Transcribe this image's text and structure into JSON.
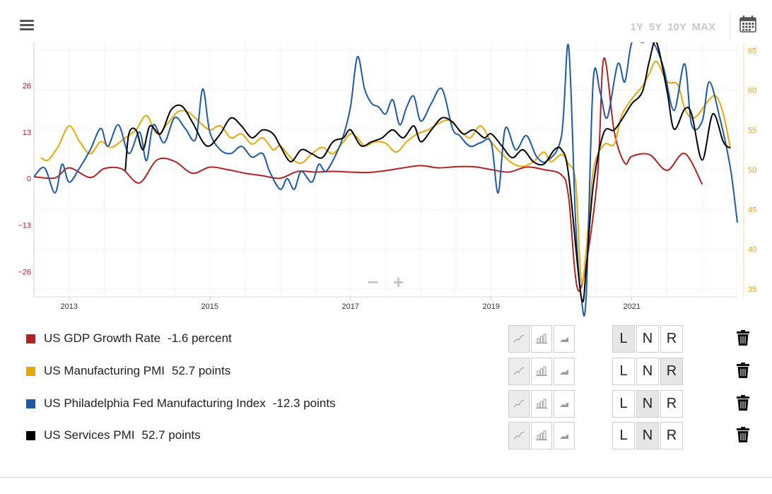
{
  "toolbar": {
    "menu_icon": "hamburger-menu-icon",
    "ranges": [
      "1Y",
      "5Y",
      "10Y",
      "MAX"
    ],
    "calendar_icon": "calendar-icon"
  },
  "chart_data": {
    "type": "line",
    "x_ticks": [
      "2013",
      "2015",
      "2017",
      "2019",
      "2021"
    ],
    "left_axis": {
      "ticks": [
        -26,
        -13,
        0,
        13,
        26
      ],
      "range": [
        -33,
        38
      ],
      "color": "#b22222"
    },
    "right_axis": {
      "ticks": [
        35,
        40,
        45,
        50,
        55,
        60,
        65
      ],
      "range": [
        34,
        66
      ],
      "color": "#e8a80c"
    },
    "x_range": [
      2012.5,
      2022.5
    ],
    "grid": true,
    "series": [
      {
        "name": "US GDP Growth Rate",
        "color": "#b22222",
        "axis": "left",
        "points": [
          [
            2012.5,
            0.5
          ],
          [
            2012.8,
            0.2
          ],
          [
            2013.0,
            3
          ],
          [
            2013.3,
            0.3
          ],
          [
            2013.5,
            2.8
          ],
          [
            2013.75,
            2.7
          ],
          [
            2014.0,
            -1.2
          ],
          [
            2014.25,
            5.2
          ],
          [
            2014.5,
            4.8
          ],
          [
            2014.75,
            1.5
          ],
          [
            2015.0,
            3.2
          ],
          [
            2015.25,
            2.5
          ],
          [
            2015.5,
            1.5
          ],
          [
            2015.75,
            0.8
          ],
          [
            2016.0,
            0.1
          ],
          [
            2016.25,
            2.0
          ],
          [
            2016.5,
            1.8
          ],
          [
            2016.75,
            2.0
          ],
          [
            2017.0,
            1.8
          ],
          [
            2017.25,
            1.7
          ],
          [
            2017.5,
            2.2
          ],
          [
            2017.75,
            3.0
          ],
          [
            2018.0,
            3.6
          ],
          [
            2018.25,
            3.0
          ],
          [
            2018.5,
            3.3
          ],
          [
            2018.75,
            3.3
          ],
          [
            2019.0,
            2.5
          ],
          [
            2019.25,
            1.8
          ],
          [
            2019.5,
            3.2
          ],
          [
            2019.75,
            2.5
          ],
          [
            2020.0,
            1.0
          ],
          [
            2020.1,
            -5
          ],
          [
            2020.25,
            -31.4
          ],
          [
            2020.5,
            -2
          ],
          [
            2020.6,
            33.4
          ],
          [
            2020.75,
            13
          ],
          [
            2020.9,
            4.3
          ],
          [
            2021.0,
            6.2
          ],
          [
            2021.25,
            6.7
          ],
          [
            2021.5,
            2.3
          ],
          [
            2021.75,
            7
          ],
          [
            2022.0,
            -1.6
          ]
        ]
      },
      {
        "name": "US Manufacturing PMI",
        "color": "#e8a80c",
        "axis": "right",
        "points": [
          [
            2012.6,
            51.5
          ],
          [
            2012.7,
            51.2
          ],
          [
            2012.85,
            53
          ],
          [
            2013.0,
            55.5
          ],
          [
            2013.15,
            53.5
          ],
          [
            2013.3,
            52.0
          ],
          [
            2013.45,
            53.5
          ],
          [
            2013.6,
            52.8
          ],
          [
            2013.8,
            54.0
          ],
          [
            2013.95,
            55.0
          ],
          [
            2014.1,
            56.8
          ],
          [
            2014.25,
            54.5
          ],
          [
            2014.4,
            55.8
          ],
          [
            2014.55,
            57.3
          ],
          [
            2014.7,
            57.2
          ],
          [
            2014.85,
            56.0
          ],
          [
            2015.0,
            55.0
          ],
          [
            2015.15,
            55.5
          ],
          [
            2015.3,
            54.0
          ],
          [
            2015.45,
            54.5
          ],
          [
            2015.6,
            53.2
          ],
          [
            2015.75,
            54.0
          ],
          [
            2015.9,
            52.5
          ],
          [
            2016.0,
            53.0
          ],
          [
            2016.15,
            51.5
          ],
          [
            2016.3,
            50.8
          ],
          [
            2016.45,
            52.0
          ],
          [
            2016.6,
            52.8
          ],
          [
            2016.75,
            52.0
          ],
          [
            2016.9,
            53.5
          ],
          [
            2017.0,
            54.5
          ],
          [
            2017.1,
            54.0
          ],
          [
            2017.2,
            53.0
          ],
          [
            2017.35,
            53.5
          ],
          [
            2017.5,
            53.3
          ],
          [
            2017.65,
            52.2
          ],
          [
            2017.8,
            53.5
          ],
          [
            2017.95,
            54.5
          ],
          [
            2018.1,
            55.0
          ],
          [
            2018.25,
            55.8
          ],
          [
            2018.4,
            56.2
          ],
          [
            2018.55,
            55.0
          ],
          [
            2018.7,
            54.0
          ],
          [
            2018.85,
            55.5
          ],
          [
            2019.0,
            53.5
          ],
          [
            2019.15,
            52.0
          ],
          [
            2019.3,
            50.8
          ],
          [
            2019.45,
            50.4
          ],
          [
            2019.6,
            51.0
          ],
          [
            2019.75,
            52.2
          ],
          [
            2019.85,
            51.0
          ],
          [
            2020.0,
            51.9
          ],
          [
            2020.1,
            50.7
          ],
          [
            2020.2,
            48.5
          ],
          [
            2020.28,
            36.1
          ],
          [
            2020.35,
            39.8
          ],
          [
            2020.45,
            49.8
          ],
          [
            2020.6,
            53.1
          ],
          [
            2020.75,
            53.2
          ],
          [
            2020.85,
            56.7
          ],
          [
            2021.0,
            58.9
          ],
          [
            2021.15,
            60.5
          ],
          [
            2021.25,
            62.1
          ],
          [
            2021.35,
            63.6
          ],
          [
            2021.5,
            61.1
          ],
          [
            2021.65,
            60.7
          ],
          [
            2021.75,
            57.7
          ],
          [
            2021.85,
            56.5
          ],
          [
            2021.95,
            57.0
          ],
          [
            2022.1,
            58.8
          ],
          [
            2022.2,
            59.2
          ],
          [
            2022.3,
            57.0
          ],
          [
            2022.4,
            52.7
          ]
        ]
      },
      {
        "name": "US Philadelphia Fed Manufacturing Index",
        "color": "#1c5aa8",
        "axis": "left",
        "points": [
          [
            2012.5,
            0.5
          ],
          [
            2012.65,
            3
          ],
          [
            2012.8,
            -4
          ],
          [
            2012.9,
            4
          ],
          [
            2013.0,
            -1
          ],
          [
            2013.15,
            3
          ],
          [
            2013.3,
            8
          ],
          [
            2013.45,
            14
          ],
          [
            2013.55,
            9
          ],
          [
            2013.7,
            15
          ],
          [
            2013.85,
            7
          ],
          [
            2014.0,
            13
          ],
          [
            2014.1,
            5
          ],
          [
            2014.2,
            15
          ],
          [
            2014.35,
            10
          ],
          [
            2014.5,
            17
          ],
          [
            2014.65,
            14
          ],
          [
            2014.8,
            11
          ],
          [
            2014.9,
            25
          ],
          [
            2015.0,
            13
          ],
          [
            2015.15,
            8
          ],
          [
            2015.3,
            7
          ],
          [
            2015.45,
            9
          ],
          [
            2015.6,
            6
          ],
          [
            2015.75,
            7
          ],
          [
            2015.85,
            2
          ],
          [
            2016.0,
            -3
          ],
          [
            2016.1,
            0
          ],
          [
            2016.2,
            -3
          ],
          [
            2016.3,
            2
          ],
          [
            2016.45,
            -1
          ],
          [
            2016.55,
            4
          ],
          [
            2016.65,
            2
          ],
          [
            2016.8,
            7
          ],
          [
            2016.9,
            12
          ],
          [
            2017.0,
            20
          ],
          [
            2017.1,
            34
          ],
          [
            2017.2,
            25
          ],
          [
            2017.3,
            21
          ],
          [
            2017.4,
            20
          ],
          [
            2017.5,
            18
          ],
          [
            2017.6,
            22
          ],
          [
            2017.7,
            15
          ],
          [
            2017.8,
            20
          ],
          [
            2017.9,
            23
          ],
          [
            2018.0,
            16
          ],
          [
            2018.15,
            21
          ],
          [
            2018.3,
            25
          ],
          [
            2018.45,
            14
          ],
          [
            2018.55,
            12
          ],
          [
            2018.7,
            9
          ],
          [
            2018.85,
            10
          ],
          [
            2019.0,
            10
          ],
          [
            2019.1,
            -4
          ],
          [
            2019.2,
            14
          ],
          [
            2019.35,
            8
          ],
          [
            2019.5,
            12
          ],
          [
            2019.65,
            6
          ],
          [
            2019.8,
            5
          ],
          [
            2020.0,
            12
          ],
          [
            2020.1,
            37
          ],
          [
            2020.2,
            -12
          ],
          [
            2020.28,
            -35
          ],
          [
            2020.35,
            -43
          ],
          [
            2020.45,
            27
          ],
          [
            2020.55,
            24
          ],
          [
            2020.65,
            17
          ],
          [
            2020.8,
            32
          ],
          [
            2020.9,
            27
          ],
          [
            2021.0,
            45
          ],
          [
            2021.15,
            44
          ],
          [
            2021.3,
            41
          ],
          [
            2021.45,
            31
          ],
          [
            2021.6,
            19
          ],
          [
            2021.75,
            32
          ],
          [
            2021.85,
            15
          ],
          [
            2022.0,
            16
          ],
          [
            2022.1,
            27
          ],
          [
            2022.25,
            17
          ],
          [
            2022.4,
            3
          ],
          [
            2022.5,
            -12.3
          ]
        ]
      },
      {
        "name": "US Services PMI",
        "color": "#000000",
        "axis": "right",
        "points": [
          [
            2013.8,
            49.9
          ],
          [
            2013.85,
            54.5
          ],
          [
            2013.95,
            55.0
          ],
          [
            2014.05,
            52.5
          ],
          [
            2014.15,
            55.5
          ],
          [
            2014.3,
            54.5
          ],
          [
            2014.45,
            57.5
          ],
          [
            2014.6,
            58.0
          ],
          [
            2014.75,
            56.0
          ],
          [
            2014.9,
            53.5
          ],
          [
            2015.0,
            53.0
          ],
          [
            2015.15,
            54.5
          ],
          [
            2015.3,
            56.5
          ],
          [
            2015.45,
            55.5
          ],
          [
            2015.6,
            54.0
          ],
          [
            2015.75,
            55.0
          ],
          [
            2015.9,
            54.5
          ],
          [
            2016.0,
            53.0
          ],
          [
            2016.15,
            51.0
          ],
          [
            2016.3,
            52.5
          ],
          [
            2016.45,
            52.0
          ],
          [
            2016.6,
            51.5
          ],
          [
            2016.75,
            53.5
          ],
          [
            2016.9,
            54.0
          ],
          [
            2017.0,
            55.0
          ],
          [
            2017.15,
            53.0
          ],
          [
            2017.3,
            53.5
          ],
          [
            2017.45,
            54.0
          ],
          [
            2017.6,
            55.0
          ],
          [
            2017.75,
            54.0
          ],
          [
            2017.9,
            55.5
          ],
          [
            2018.0,
            53.5
          ],
          [
            2018.15,
            55.0
          ],
          [
            2018.3,
            56.5
          ],
          [
            2018.45,
            56.0
          ],
          [
            2018.6,
            54.5
          ],
          [
            2018.75,
            55.0
          ],
          [
            2018.9,
            54.0
          ],
          [
            2019.0,
            54.5
          ],
          [
            2019.15,
            53.0
          ],
          [
            2019.3,
            51.5
          ],
          [
            2019.45,
            52.5
          ],
          [
            2019.6,
            51.0
          ],
          [
            2019.75,
            50.7
          ],
          [
            2019.9,
            52.5
          ],
          [
            2020.0,
            52.5
          ],
          [
            2020.1,
            49.4
          ],
          [
            2020.28,
            27.0
          ],
          [
            2020.35,
            37.5
          ],
          [
            2020.45,
            47.9
          ],
          [
            2020.6,
            54.6
          ],
          [
            2020.75,
            55.0
          ],
          [
            2020.9,
            56.9
          ],
          [
            2021.0,
            58.3
          ],
          [
            2021.15,
            59.8
          ],
          [
            2021.25,
            63.7
          ],
          [
            2021.35,
            70.4
          ],
          [
            2021.5,
            59.9
          ],
          [
            2021.6,
            55.1
          ],
          [
            2021.75,
            57.6
          ],
          [
            2021.85,
            57.0
          ],
          [
            2022.0,
            51.2
          ],
          [
            2022.15,
            57.0
          ],
          [
            2022.3,
            53.5
          ],
          [
            2022.4,
            52.7
          ]
        ]
      }
    ]
  },
  "zoom": {
    "minus": "−",
    "plus": "+"
  },
  "legend": [
    {
      "name": "US GDP Growth Rate",
      "value": "-1.6 percent",
      "color": "#b22222",
      "active_type": 0,
      "active_axis": 0
    },
    {
      "name": "US Manufacturing PMI",
      "value": "52.7 points",
      "color": "#e8a80c",
      "active_type": 0,
      "active_axis": 2
    },
    {
      "name": "US Philadelphia Fed Manufacturing Index",
      "value": "-12.3 points",
      "color": "#1c5aa8",
      "active_type": 0,
      "active_axis": 1
    },
    {
      "name": "US Services PMI",
      "value": "52.7 points",
      "color": "#000000",
      "active_type": 0,
      "active_axis": 1
    }
  ],
  "chart_types": [
    "line-chart-icon",
    "bar-chart-icon",
    "area-chart-icon"
  ],
  "axis_options": [
    "L",
    "N",
    "R"
  ],
  "delete_icon": "trash-icon"
}
